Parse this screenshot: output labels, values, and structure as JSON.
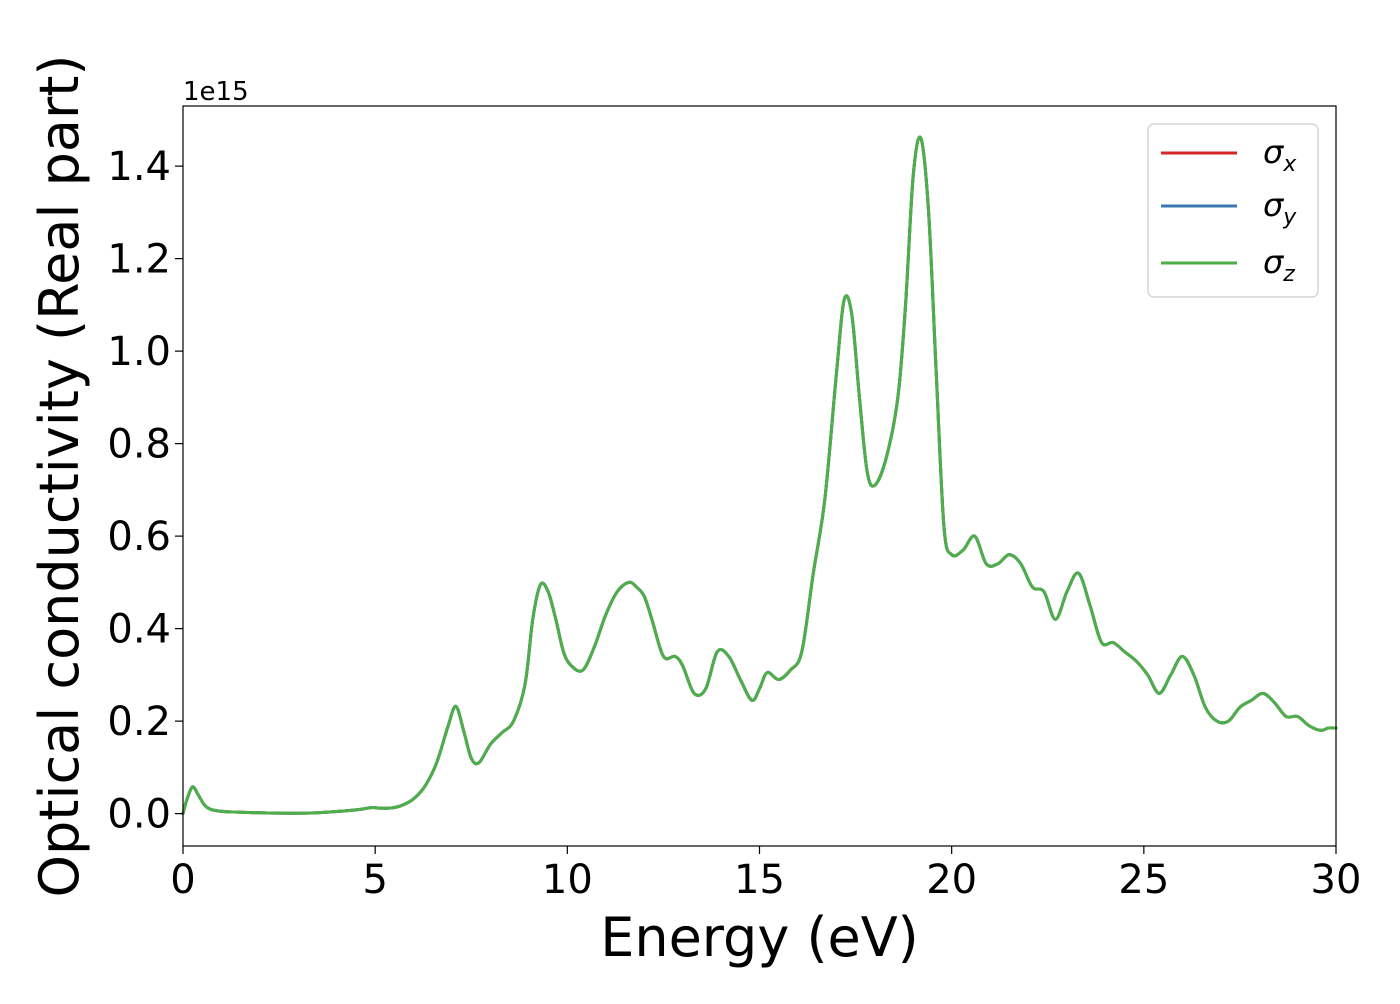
{
  "chart_data": {
    "type": "line",
    "title": "",
    "xlabel": "Energy (eV)",
    "ylabel": "Optical conductivity (Real part)",
    "y_offset_label": "1e15",
    "xlim": [
      0,
      30
    ],
    "ylim": [
      -0.07,
      1.53
    ],
    "x_ticks": [
      0,
      5,
      10,
      15,
      20,
      25,
      30
    ],
    "x_tick_labels": [
      "0",
      "5",
      "10",
      "15",
      "20",
      "25",
      "30"
    ],
    "y_ticks": [
      0.0,
      0.2,
      0.4,
      0.6,
      0.8,
      1.0,
      1.2,
      1.4
    ],
    "y_tick_labels": [
      "0.0",
      "0.2",
      "0.4",
      "0.6",
      "0.8",
      "1.0",
      "1.2",
      "1.4"
    ],
    "grid": false,
    "legend_position": "top-right",
    "x": [
      0,
      0.1,
      0.25,
      0.4,
      0.6,
      0.9,
      1.5,
      2.5,
      3.5,
      4.5,
      4.9,
      5.1,
      5.4,
      5.7,
      6.0,
      6.3,
      6.6,
      6.9,
      7.1,
      7.3,
      7.5,
      7.7,
      8.0,
      8.3,
      8.6,
      8.9,
      9.1,
      9.3,
      9.5,
      9.7,
      9.9,
      10.1,
      10.4,
      10.7,
      11.0,
      11.3,
      11.6,
      11.8,
      12.0,
      12.2,
      12.5,
      12.8,
      13.0,
      13.3,
      13.6,
      13.9,
      14.2,
      14.5,
      14.8,
      15.0,
      15.2,
      15.5,
      15.8,
      16.1,
      16.4,
      16.7,
      17.0,
      17.2,
      17.4,
      17.6,
      17.8,
      18.0,
      18.3,
      18.6,
      18.8,
      19.0,
      19.2,
      19.4,
      19.6,
      19.8,
      20.0,
      20.3,
      20.6,
      20.9,
      21.2,
      21.5,
      21.8,
      22.1,
      22.4,
      22.7,
      23.0,
      23.3,
      23.6,
      23.9,
      24.2,
      24.5,
      24.8,
      25.1,
      25.4,
      25.7,
      26.0,
      26.3,
      26.6,
      26.9,
      27.2,
      27.5,
      27.8,
      28.1,
      28.4,
      28.7,
      29.0,
      29.3,
      29.6,
      29.8,
      30.0
    ],
    "series": [
      {
        "name": "σx",
        "color": "#d62728",
        "values": [
          0.0,
          0.03,
          0.058,
          0.04,
          0.015,
          0.006,
          0.003,
          0.001,
          0.002,
          0.008,
          0.013,
          0.012,
          0.012,
          0.018,
          0.032,
          0.06,
          0.11,
          0.19,
          0.232,
          0.18,
          0.12,
          0.11,
          0.15,
          0.175,
          0.2,
          0.28,
          0.42,
          0.495,
          0.48,
          0.42,
          0.35,
          0.32,
          0.31,
          0.36,
          0.43,
          0.48,
          0.5,
          0.49,
          0.47,
          0.42,
          0.34,
          0.34,
          0.32,
          0.26,
          0.27,
          0.35,
          0.34,
          0.29,
          0.245,
          0.27,
          0.305,
          0.29,
          0.31,
          0.35,
          0.52,
          0.68,
          0.95,
          1.11,
          1.08,
          0.9,
          0.74,
          0.71,
          0.77,
          0.9,
          1.1,
          1.38,
          1.46,
          1.3,
          0.95,
          0.62,
          0.56,
          0.57,
          0.6,
          0.54,
          0.54,
          0.56,
          0.54,
          0.49,
          0.48,
          0.42,
          0.48,
          0.52,
          0.45,
          0.37,
          0.37,
          0.35,
          0.33,
          0.3,
          0.26,
          0.3,
          0.34,
          0.3,
          0.23,
          0.2,
          0.2,
          0.23,
          0.245,
          0.26,
          0.24,
          0.21,
          0.21,
          0.19,
          0.18,
          0.185,
          0.185
        ]
      },
      {
        "name": "σy",
        "color": "#3a78b0",
        "values": [
          0.0,
          0.03,
          0.058,
          0.04,
          0.015,
          0.006,
          0.003,
          0.001,
          0.002,
          0.008,
          0.013,
          0.012,
          0.012,
          0.018,
          0.032,
          0.06,
          0.11,
          0.19,
          0.232,
          0.18,
          0.12,
          0.11,
          0.15,
          0.175,
          0.2,
          0.28,
          0.42,
          0.495,
          0.48,
          0.42,
          0.35,
          0.32,
          0.31,
          0.36,
          0.43,
          0.48,
          0.5,
          0.49,
          0.47,
          0.42,
          0.34,
          0.34,
          0.32,
          0.26,
          0.27,
          0.35,
          0.34,
          0.29,
          0.245,
          0.27,
          0.305,
          0.29,
          0.31,
          0.35,
          0.52,
          0.68,
          0.95,
          1.11,
          1.08,
          0.9,
          0.74,
          0.71,
          0.77,
          0.9,
          1.1,
          1.38,
          1.46,
          1.3,
          0.95,
          0.62,
          0.56,
          0.57,
          0.6,
          0.54,
          0.54,
          0.56,
          0.54,
          0.49,
          0.48,
          0.42,
          0.48,
          0.52,
          0.45,
          0.37,
          0.37,
          0.35,
          0.33,
          0.3,
          0.26,
          0.3,
          0.34,
          0.3,
          0.23,
          0.2,
          0.2,
          0.23,
          0.245,
          0.26,
          0.24,
          0.21,
          0.21,
          0.19,
          0.18,
          0.185,
          0.185
        ]
      },
      {
        "name": "σz",
        "color": "#4daf4a",
        "values": [
          0.0,
          0.03,
          0.058,
          0.04,
          0.015,
          0.006,
          0.003,
          0.001,
          0.002,
          0.008,
          0.013,
          0.012,
          0.012,
          0.018,
          0.032,
          0.06,
          0.11,
          0.19,
          0.232,
          0.18,
          0.12,
          0.11,
          0.15,
          0.175,
          0.2,
          0.28,
          0.42,
          0.495,
          0.48,
          0.42,
          0.35,
          0.32,
          0.31,
          0.36,
          0.43,
          0.48,
          0.5,
          0.49,
          0.47,
          0.42,
          0.34,
          0.34,
          0.32,
          0.26,
          0.27,
          0.35,
          0.34,
          0.29,
          0.245,
          0.27,
          0.305,
          0.29,
          0.31,
          0.35,
          0.52,
          0.68,
          0.95,
          1.11,
          1.08,
          0.9,
          0.74,
          0.71,
          0.77,
          0.9,
          1.1,
          1.38,
          1.46,
          1.3,
          0.95,
          0.62,
          0.56,
          0.57,
          0.6,
          0.54,
          0.54,
          0.56,
          0.54,
          0.49,
          0.48,
          0.42,
          0.48,
          0.52,
          0.45,
          0.37,
          0.37,
          0.35,
          0.33,
          0.3,
          0.26,
          0.3,
          0.34,
          0.3,
          0.23,
          0.2,
          0.2,
          0.23,
          0.245,
          0.26,
          0.24,
          0.21,
          0.21,
          0.19,
          0.18,
          0.185,
          0.185
        ]
      }
    ],
    "legend": [
      {
        "symbol": "σ",
        "sub": "x",
        "color": "#d62728"
      },
      {
        "symbol": "σ",
        "sub": "y",
        "color": "#3a78b0"
      },
      {
        "symbol": "σ",
        "sub": "z",
        "color": "#4daf4a"
      }
    ]
  }
}
